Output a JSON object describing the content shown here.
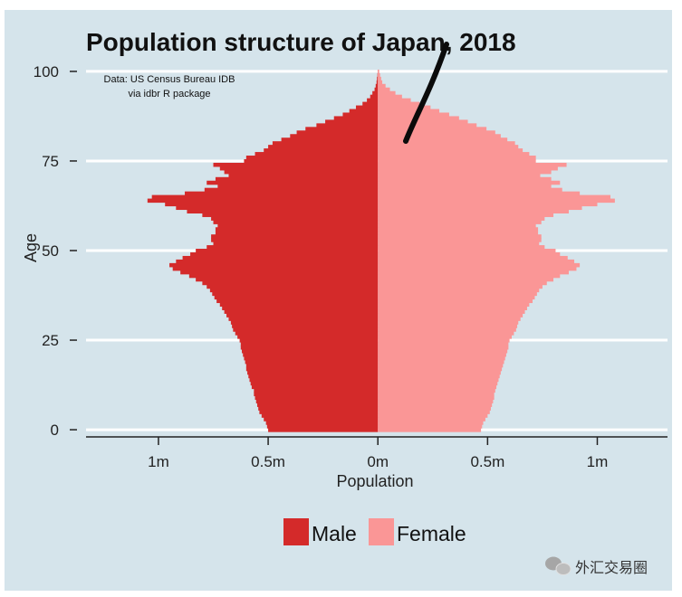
{
  "chart_data": {
    "type": "bar",
    "orientation": "horizontal-pyramid",
    "title": "Population structure of Japan, 2018",
    "caption_lines": [
      "Data: US Census Bureau IDB",
      "via idbr R package"
    ],
    "xlabel": "Population",
    "ylabel": "Age",
    "x_ticks": [
      {
        "value": -1000000,
        "label": "1m"
      },
      {
        "value": -500000,
        "label": "0.5m"
      },
      {
        "value": 0,
        "label": "0m"
      },
      {
        "value": 500000,
        "label": "0.5m"
      },
      {
        "value": 1000000,
        "label": "1m"
      }
    ],
    "y_ticks": [
      {
        "value": 0,
        "label": "0"
      },
      {
        "value": 25,
        "label": "25"
      },
      {
        "value": 50,
        "label": "50"
      },
      {
        "value": 75,
        "label": "75"
      },
      {
        "value": 100,
        "label": "100"
      }
    ],
    "xlim": [
      -1330000,
      1320000
    ],
    "ylim": [
      -2,
      102
    ],
    "grid": "horizontal major lines",
    "legend_position": "bottom",
    "series": [
      {
        "name": "Male",
        "color": "#d42a2a",
        "values": [
          500000,
          505000,
          510000,
          520000,
          530000,
          540000,
          545000,
          550000,
          555000,
          560000,
          565000,
          565000,
          575000,
          580000,
          585000,
          590000,
          595000,
          600000,
          600000,
          605000,
          610000,
          615000,
          620000,
          625000,
          625000,
          630000,
          640000,
          650000,
          660000,
          665000,
          670000,
          680000,
          690000,
          700000,
          710000,
          720000,
          735000,
          745000,
          755000,
          765000,
          780000,
          800000,
          830000,
          860000,
          900000,
          935000,
          950000,
          920000,
          890000,
          855000,
          830000,
          780000,
          750000,
          760000,
          760000,
          740000,
          740000,
          730000,
          750000,
          760000,
          800000,
          870000,
          920000,
          970000,
          1050000,
          1030000,
          880000,
          790000,
          730000,
          780000,
          740000,
          680000,
          700000,
          720000,
          750000,
          610000,
          600000,
          560000,
          520000,
          500000,
          480000,
          440000,
          400000,
          370000,
          330000,
          280000,
          240000,
          200000,
          160000,
          130000,
          100000,
          70000,
          50000,
          35000,
          25000,
          15000,
          10000,
          6000,
          4000,
          2000,
          1000
        ]
      },
      {
        "name": "Female",
        "color": "#fa9696",
        "values": [
          470000,
          475000,
          480000,
          490000,
          500000,
          510000,
          515000,
          520000,
          525000,
          530000,
          530000,
          535000,
          540000,
          545000,
          550000,
          555000,
          560000,
          565000,
          570000,
          575000,
          580000,
          585000,
          590000,
          595000,
          595000,
          600000,
          610000,
          620000,
          630000,
          635000,
          640000,
          650000,
          660000,
          670000,
          680000,
          690000,
          705000,
          715000,
          725000,
          735000,
          750000,
          770000,
          800000,
          830000,
          870000,
          905000,
          920000,
          895000,
          865000,
          830000,
          810000,
          760000,
          735000,
          745000,
          745000,
          730000,
          730000,
          720000,
          745000,
          760000,
          800000,
          870000,
          930000,
          1000000,
          1080000,
          1060000,
          920000,
          840000,
          790000,
          830000,
          790000,
          740000,
          790000,
          820000,
          860000,
          720000,
          720000,
          690000,
          660000,
          640000,
          625000,
          590000,
          560000,
          535000,
          495000,
          450000,
          410000,
          370000,
          325000,
          280000,
          240000,
          190000,
          150000,
          110000,
          80000,
          55000,
          35000,
          20000,
          15000,
          10000,
          6000
        ]
      }
    ]
  },
  "legend": {
    "male": "Male",
    "female": "Female"
  },
  "watermark": {
    "text": "外汇交易圈"
  }
}
